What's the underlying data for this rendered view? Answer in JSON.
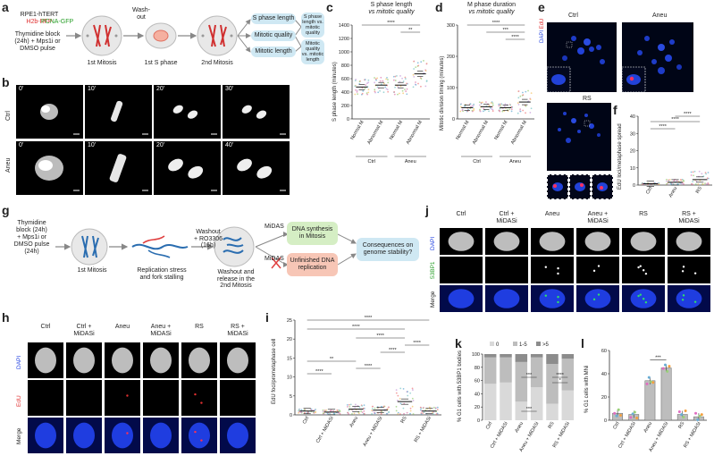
{
  "panels": {
    "a": "a",
    "b": "b",
    "c": "c",
    "d": "d",
    "e": "e",
    "f": "f",
    "g": "g",
    "h": "h",
    "i": "i",
    "j": "j",
    "k": "k",
    "l": "l"
  },
  "panel_a": {
    "cell_line": "RPE1-hTERT",
    "h2b": "H2b-RFP",
    "pcna": "PCNA-GFP",
    "treatment": [
      "Thymidine block",
      "(24h) + Mps1i or",
      "DMSO pulse"
    ],
    "washout": [
      "Wash-",
      "out"
    ],
    "stage1": "1st Mitosis",
    "stage2": "1st S phase",
    "stage3": "2nd Mitosis",
    "measures": [
      "S phase length",
      "Mitotic quality",
      "Mitotic length"
    ],
    "results": [
      [
        "S phase",
        "length vs.",
        "mitotic quality"
      ],
      [
        "Mitotic quality",
        "vs. mitotic",
        "length"
      ]
    ]
  },
  "panel_b": {
    "rows": [
      "Ctrl",
      "Aneu"
    ],
    "ctrl_times": [
      "0'",
      "10'",
      "20'",
      "30'"
    ],
    "aneu_times": [
      "0'",
      "10'",
      "20'",
      "40'"
    ]
  },
  "panel_c": {
    "title": "S phase length",
    "subtitle": "vs mitotic quality",
    "ylabel": "S phase length (minutes)",
    "yticks": [
      "0",
      "200",
      "400",
      "600",
      "800",
      "1000",
      "1200",
      "1400"
    ],
    "categories": [
      "Normal M",
      "Abnormal M",
      "Normal M",
      "Abnormal M"
    ],
    "groups": [
      "Ctrl",
      "Aneu"
    ],
    "sig": [
      "****",
      "**"
    ]
  },
  "panel_d": {
    "title": "M phase duration",
    "subtitle": "vs mitotic quality",
    "ylabel": "Mitotic division timing (minutes)",
    "yticks": [
      "0",
      "100",
      "200",
      "300"
    ],
    "categories": [
      "Normal M",
      "Abnormal M",
      "Normal M",
      "Abnormal M"
    ],
    "groups": [
      "Ctrl",
      "Aneu"
    ],
    "sig": [
      "****",
      "***",
      "****"
    ]
  },
  "panel_e": {
    "ctrl": "Ctrl",
    "aneu": "Aneu",
    "rs": "RS",
    "dapi": "DAPI",
    "edu": "EdU"
  },
  "panel_f": {
    "ylabel": "EdU loci/metaphase spread",
    "yticks": [
      "0",
      "10",
      "20",
      "30",
      "40"
    ],
    "categories": [
      "Ctrl",
      "Aneu",
      "RS"
    ],
    "sig": [
      "****",
      "****",
      "****"
    ]
  },
  "panel_g": {
    "treatment": [
      "Thymidine",
      "block (24h)",
      "+ Mps1i or",
      "DMSO pulse",
      "(24h)"
    ],
    "stage1": "1st Mitosis",
    "rs_text": [
      "Replication stress",
      "and fork stalling"
    ],
    "washout": [
      "Washout",
      "+ RO3306",
      "(16h)"
    ],
    "release": [
      "Washout and",
      "release in the",
      "2nd Mitosis"
    ],
    "midas1": "MiDAS",
    "midas2": "MiDAS",
    "green_box": [
      "DNA synthesis",
      "in Mitosis"
    ],
    "red_box": [
      "Unfinished DNA",
      "replication"
    ],
    "blue_box": [
      "Consequences on",
      "genome stability?"
    ]
  },
  "panel_h": {
    "columns": [
      "Ctrl",
      "Ctrl +\nMiDASi",
      "Aneu",
      "Aneu +\nMiDASi",
      "RS",
      "RS +\nMiDASi"
    ],
    "rows": [
      "DAPI",
      "EdU",
      "Merge"
    ]
  },
  "panel_i": {
    "ylabel": "EdU foci/prometaphase cell",
    "yticks": [
      "0",
      "5",
      "10",
      "15",
      "20",
      "25"
    ],
    "categories": [
      "Ctrl",
      "Ctrl + MiDASi",
      "Aneu",
      "Aneu + MiDASi",
      "RS",
      "RS + MiDASi"
    ],
    "sig": [
      "****",
      "****",
      "****",
      "****",
      "****",
      "**",
      "****",
      "****"
    ]
  },
  "panel_j": {
    "columns": [
      "Ctrl",
      "Ctrl +\nMiDASi",
      "Aneu",
      "Aneu +\nMiDASi",
      "RS",
      "RS +\nMiDASi"
    ],
    "rows": [
      "DAPI",
      "53BP1",
      "Merge"
    ]
  },
  "chart_data": [
    {
      "type": "bar",
      "panel": "k",
      "ylabel": "% G1 cells with 53BP1 bodies",
      "yticks": [
        "0",
        "20",
        "40",
        "60",
        "80",
        "100"
      ],
      "ylim": [
        0,
        100
      ],
      "legend": [
        "0",
        "1-5",
        ">5"
      ],
      "categories": [
        "Ctrl",
        "Ctrl + MiDASi",
        "Aneu",
        "Aneu + MiDASi",
        "RS",
        "RS + MiDASi"
      ],
      "series": [
        {
          "name": "0",
          "values": [
            55,
            57,
            28,
            50,
            25,
            45
          ]
        },
        {
          "name": "1-5",
          "values": [
            40,
            38,
            60,
            45,
            60,
            48
          ]
        },
        {
          "name": ">5",
          "values": [
            5,
            5,
            12,
            5,
            15,
            7
          ]
        }
      ],
      "colors": [
        "#d9d9d9",
        "#bdbdbd",
        "#8c8c8c"
      ],
      "sig": [
        "***",
        "****",
        "***",
        "*"
      ]
    },
    {
      "type": "bar",
      "panel": "l",
      "ylabel": "% G1 cells with MNi",
      "yticks": [
        "0",
        "20",
        "40",
        "60"
      ],
      "ylim": [
        0,
        60
      ],
      "categories": [
        "Ctrl",
        "Ctrl + MiDASi",
        "Aneu",
        "Aneu + MiDASi",
        "RS",
        "RS + MiDASi"
      ],
      "values": [
        6,
        5,
        34,
        45,
        5,
        3
      ],
      "sig": [
        "***"
      ]
    }
  ]
}
